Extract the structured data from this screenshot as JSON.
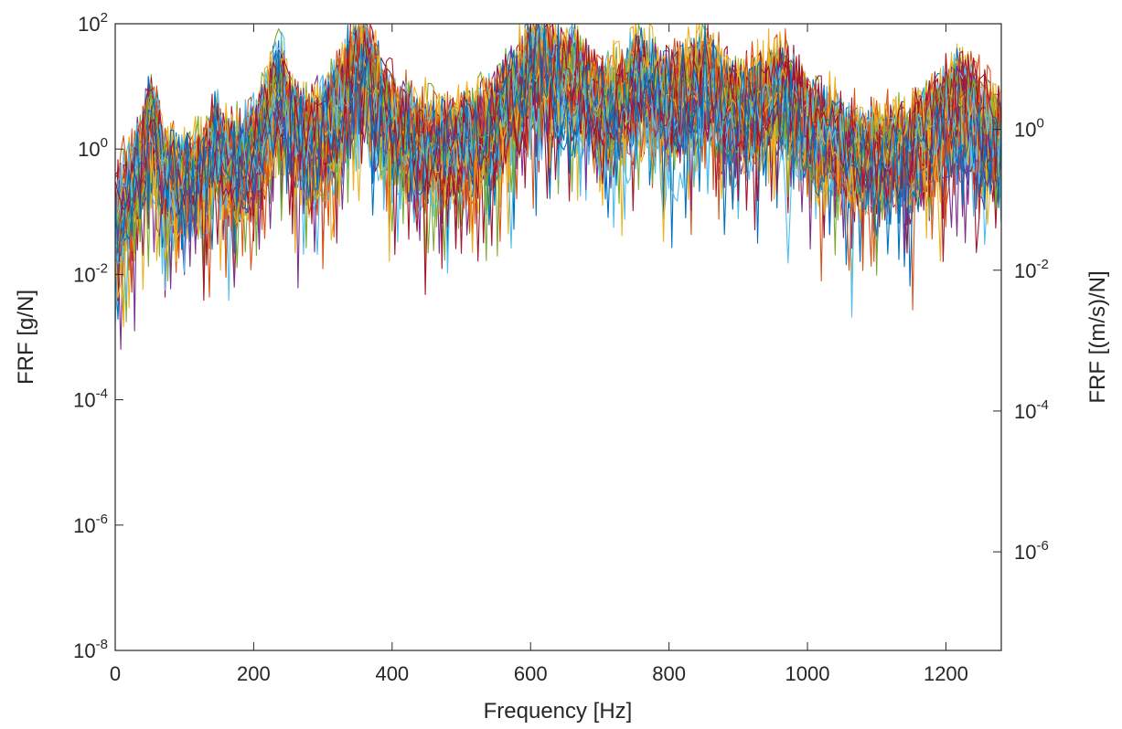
{
  "chart_data": {
    "type": "line",
    "title": "",
    "xlabel": "Frequency [Hz]",
    "ylabel_left": "FRF [g/N]",
    "ylabel_right": "FRF [(m/s)/N]",
    "x_range": [
      0,
      1280
    ],
    "y_left_log_range": [
      -8,
      2
    ],
    "y_right_log_range": [
      -7.4,
      1.5
    ],
    "y_scale": "log",
    "grid": false,
    "legend": "none",
    "x_ticks": [
      "0",
      "200",
      "400",
      "600",
      "800",
      "1000",
      "1200"
    ],
    "x_tick_values": [
      0,
      200,
      400,
      600,
      800,
      1000,
      1200
    ],
    "y_left_ticks": [
      {
        "base": "10",
        "exp": "2",
        "value": 2
      },
      {
        "base": "10",
        "exp": "0",
        "value": 0
      },
      {
        "base": "10",
        "exp": "-2",
        "value": -2
      },
      {
        "base": "10",
        "exp": "-4",
        "value": -4
      },
      {
        "base": "10",
        "exp": "-6",
        "value": -6
      },
      {
        "base": "10",
        "exp": "-8",
        "value": -8
      }
    ],
    "y_right_ticks": [
      {
        "base": "10",
        "exp": "0",
        "value": 0
      },
      {
        "base": "10",
        "exp": "-2",
        "value": -2
      },
      {
        "base": "10",
        "exp": "-4",
        "value": -4
      },
      {
        "base": "10",
        "exp": "-6",
        "value": -6
      }
    ],
    "resonance_peaks_hz": [
      52,
      145,
      237,
      355,
      610,
      660,
      760,
      850,
      960,
      1220
    ],
    "peak_levels_log": [
      0.7,
      0.15,
      1.1,
      1.7,
      1.7,
      1.3,
      1.3,
      1.3,
      1.1,
      1.0
    ],
    "series_count": 120,
    "colors": [
      "#0072BD",
      "#D95319",
      "#EDB120",
      "#7E2F8E",
      "#77AC30",
      "#4DBEEE",
      "#A2142F"
    ]
  }
}
